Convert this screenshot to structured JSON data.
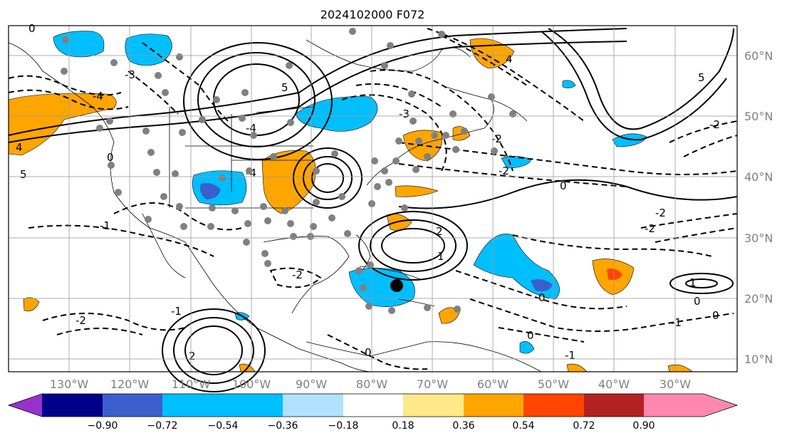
{
  "title": "2024102000 F072",
  "map": {
    "lat_labels": [
      "60°N",
      "50°N",
      "40°N",
      "30°N",
      "20°N",
      "10°N"
    ],
    "lon_labels": [
      "130°W",
      "120°W",
      "110°W",
      "100°W",
      "90°W",
      "80°W",
      "70°W",
      "60°W",
      "50°W",
      "40°W",
      "30°W"
    ],
    "contour_labels": [
      "0",
      "4",
      "5",
      "-3",
      "-4",
      "-2",
      "-1",
      "0",
      "5",
      "-2",
      "2",
      "-1",
      "0",
      "1",
      "-2",
      "0",
      "-1",
      "0",
      "2",
      "-2",
      "1",
      "-4",
      "-3",
      "4",
      "-2",
      "5",
      "-4",
      "0",
      "-2",
      "-2",
      "0",
      "-1",
      "0"
    ]
  },
  "colorbar": {
    "tick_labels": [
      "−0.90",
      "−0.72",
      "−0.54",
      "−0.36",
      "−0.18",
      "0.18",
      "0.36",
      "0.54",
      "0.72",
      "0.90"
    ],
    "colors": [
      "#9932cc",
      "#00008b",
      "#3a5fcd",
      "#00bfff",
      "#b0e2ff",
      "#ffffff",
      "#ffe888",
      "#ffa500",
      "#ff4500",
      "#b22222",
      "#ff88b0"
    ]
  }
}
